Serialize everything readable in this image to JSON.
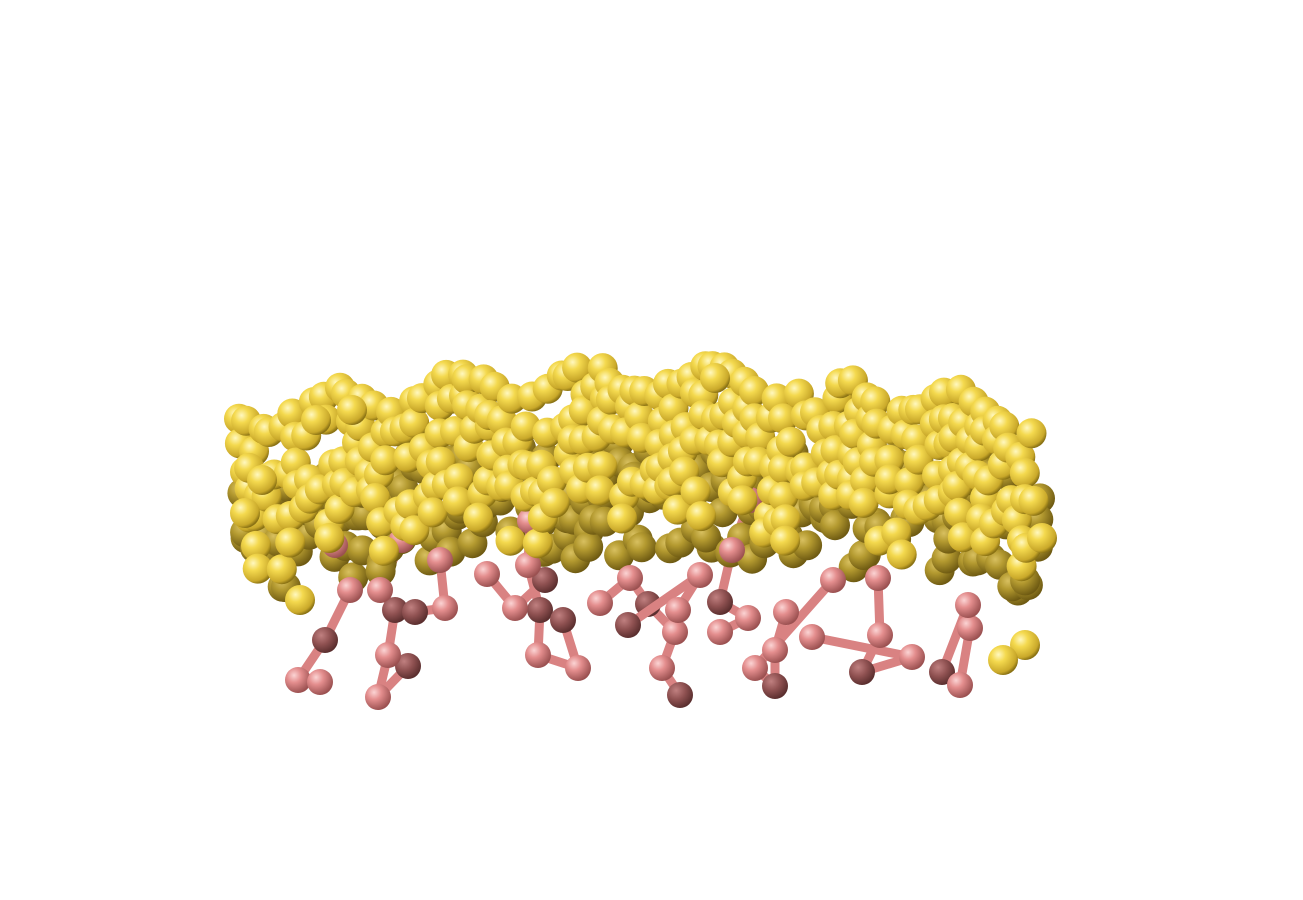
{
  "scene": {
    "description_type": "molecular-structure-render",
    "colors": {
      "background": "#ffffff",
      "sphere_main": "#f4d94e",
      "sphere_highlight": "#fff6b0",
      "sphere_shadow": "#a8901c",
      "stick_main": "#e08a8a",
      "stick_highlight": "#f8c8c8",
      "stick_shadow": "#9a5050"
    },
    "layers": {
      "sphere_layer": "yellow-spheres",
      "stick_layer": "pink-ball-and-stick"
    }
  }
}
